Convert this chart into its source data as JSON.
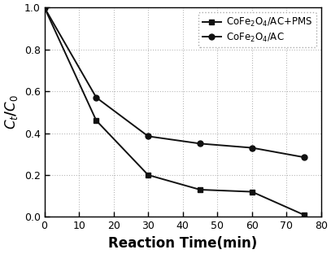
{
  "series": [
    {
      "label": "CoFe$_2$O$_4$/AC+PMS",
      "x": [
        0,
        15,
        30,
        45,
        60,
        75
      ],
      "y": [
        1.0,
        0.46,
        0.2,
        0.13,
        0.12,
        0.01
      ],
      "marker": "s",
      "color": "#111111",
      "linewidth": 1.4,
      "markersize": 5
    },
    {
      "label": "CoFe$_2$O$_4$/AC",
      "x": [
        0,
        15,
        30,
        45,
        60,
        75
      ],
      "y": [
        1.0,
        0.57,
        0.385,
        0.35,
        0.33,
        0.285
      ],
      "marker": "o",
      "color": "#111111",
      "linewidth": 1.4,
      "markersize": 5
    }
  ],
  "xlabel": "Reaction Time(min)",
  "ylabel": "$C_t$/$C_0$",
  "xlim": [
    0,
    80
  ],
  "ylim": [
    0.0,
    1.0
  ],
  "xticks": [
    0,
    10,
    20,
    30,
    40,
    50,
    60,
    70,
    80
  ],
  "yticks": [
    0.0,
    0.2,
    0.4,
    0.6,
    0.8,
    1.0
  ],
  "background_color": "#ffffff",
  "grid": true,
  "grid_style": ":",
  "grid_color": "#999999",
  "grid_alpha": 0.7
}
